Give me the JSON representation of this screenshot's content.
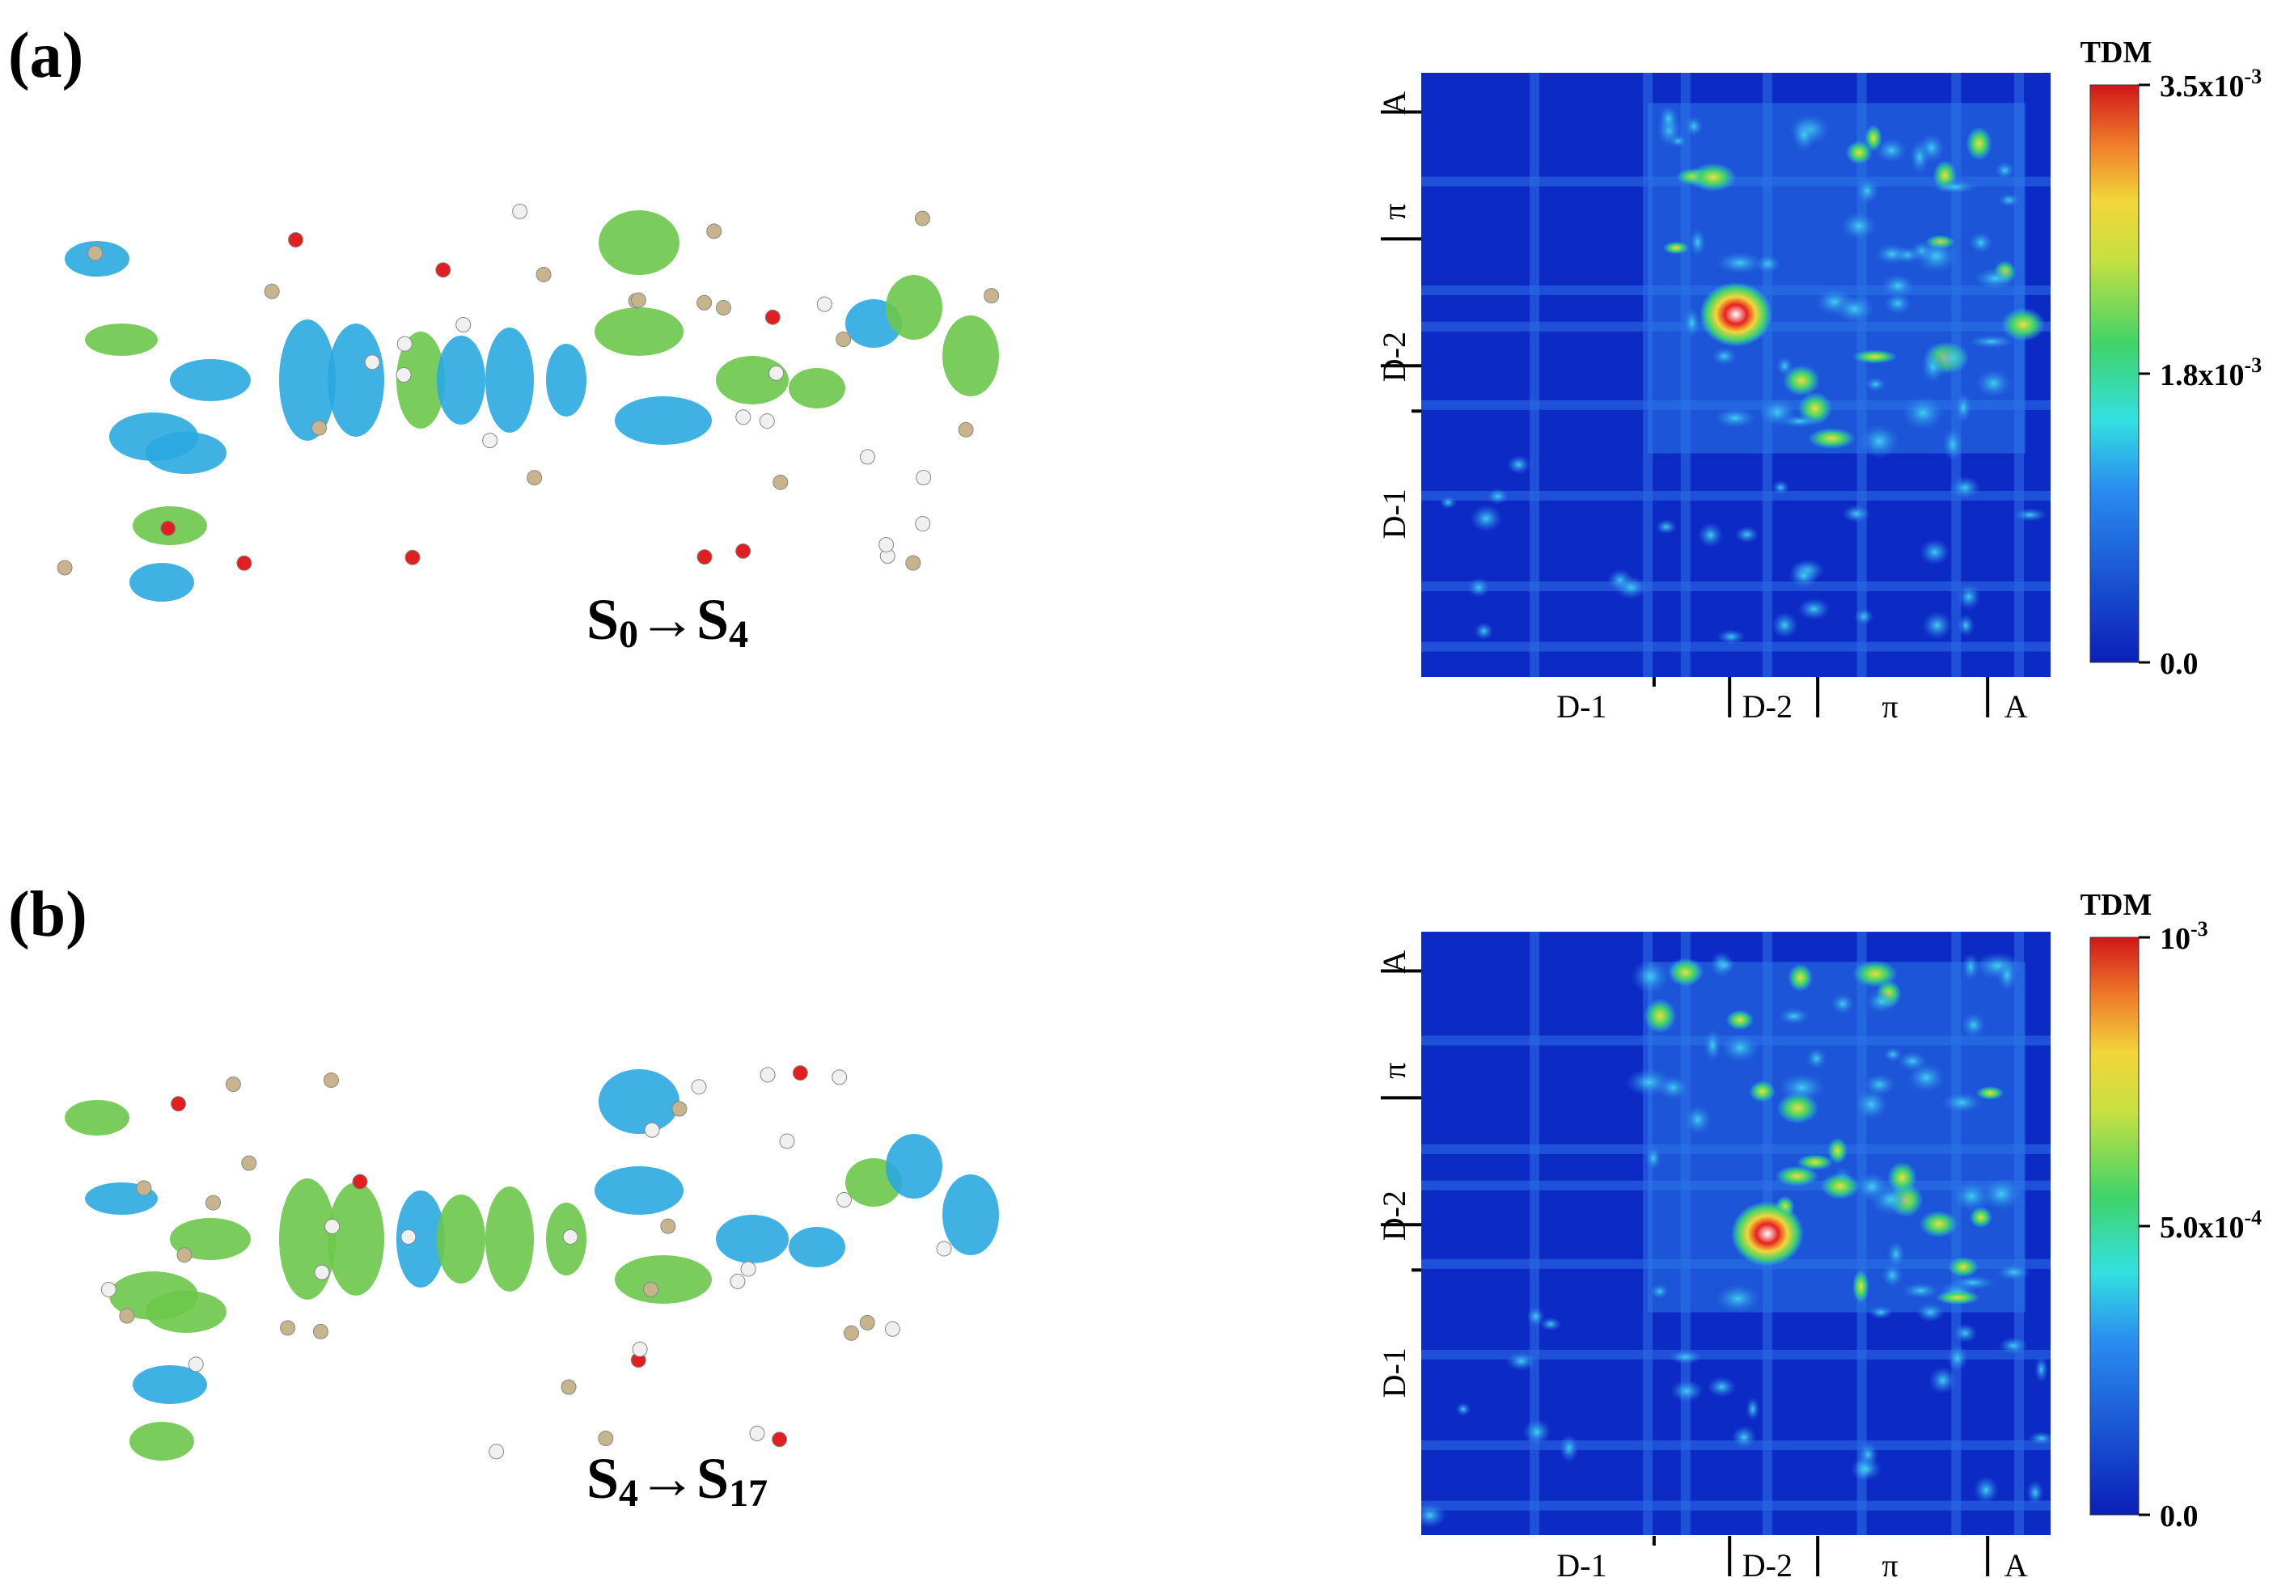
{
  "panels": [
    {
      "label": "(a)",
      "transition": [
        "S",
        "0",
        "→S",
        "4"
      ],
      "heatmap": {
        "x_labels": [
          "D-1",
          "D-2",
          "π",
          "A"
        ],
        "y_labels": [
          "A",
          "π",
          "D-2",
          "D-1"
        ],
        "colorbar": {
          "title": "TDM",
          "ticks": [
            {
              "text": "3.5x10",
              "sup": "-3"
            },
            {
              "text": "1.8x10",
              "sup": "-3"
            },
            {
              "text": "0.0"
            }
          ]
        }
      }
    },
    {
      "label": "(b)",
      "transition": [
        "S",
        "4",
        "→S",
        "17"
      ],
      "heatmap": {
        "x_labels": [
          "D-1",
          "D-2",
          "π",
          "A"
        ],
        "y_labels": [
          "A",
          "π",
          "D-2",
          "D-1"
        ],
        "colorbar": {
          "title": "TDM",
          "ticks": [
            {
              "text": "10",
              "sup": "-3"
            },
            {
              "text": "5.0x10",
              "sup": "-4"
            },
            {
              "text": "0.0"
            }
          ]
        }
      }
    }
  ]
}
